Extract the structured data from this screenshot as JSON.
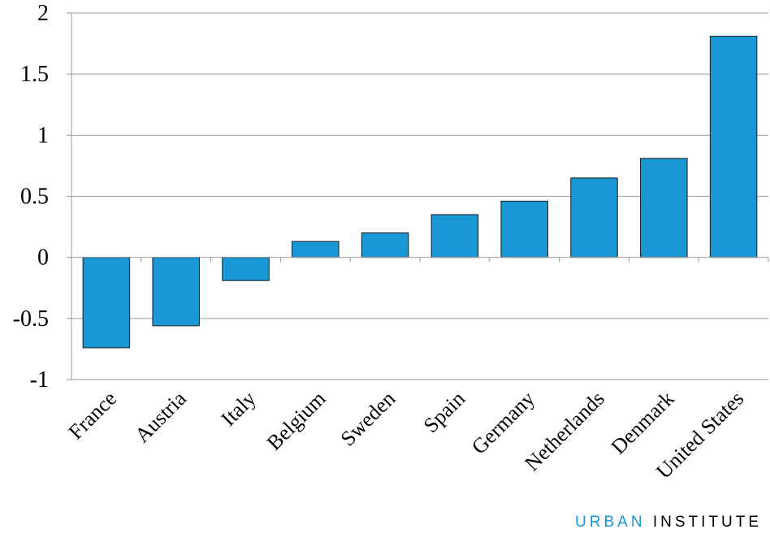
{
  "chart_data": {
    "type": "bar",
    "categories": [
      "France",
      "Austria",
      "Italy",
      "Belgium",
      "Sweden",
      "Spain",
      "Germany",
      "Netherlands",
      "Denmark",
      "United States"
    ],
    "values": [
      -0.74,
      -0.56,
      -0.19,
      0.13,
      0.2,
      0.35,
      0.46,
      0.65,
      0.81,
      1.81
    ],
    "yticks": [
      "-1",
      "-0.5",
      "0",
      "0.5",
      "1",
      "1.5",
      "2"
    ],
    "ylim": [
      -1,
      2
    ],
    "grid": true,
    "legend": "none",
    "title": "",
    "xlabel": "",
    "ylabel": "",
    "bar_color": "#1a98d5"
  },
  "logo": {
    "urban": "URBAN",
    "institute": "INSTITUTE"
  }
}
